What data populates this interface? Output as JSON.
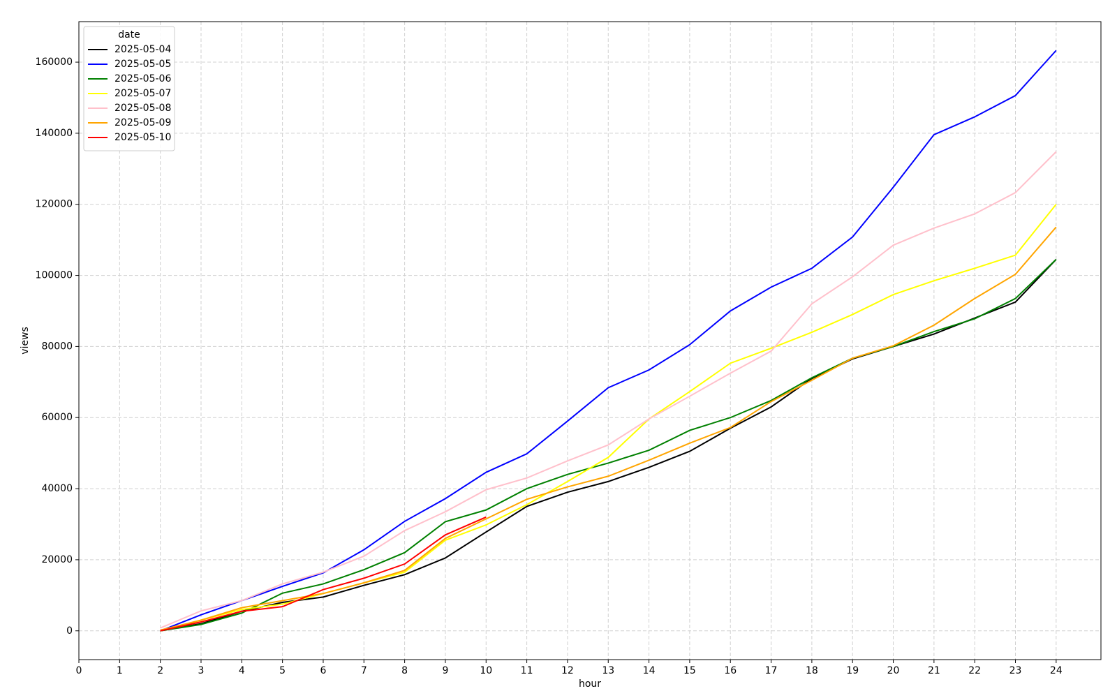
{
  "chart_data": {
    "type": "line",
    "xlabel": "hour",
    "ylabel": "views",
    "legend_title": "date",
    "legend_loc": "upper left",
    "grid": true,
    "x": [
      2,
      3,
      4,
      5,
      6,
      7,
      8,
      9,
      10,
      11,
      12,
      13,
      14,
      15,
      16,
      17,
      18,
      19,
      20,
      21,
      22,
      23,
      24
    ],
    "xlim": [
      0,
      25.1
    ],
    "xticks": [
      0,
      1,
      2,
      3,
      4,
      5,
      6,
      7,
      8,
      9,
      10,
      11,
      12,
      13,
      14,
      15,
      16,
      17,
      18,
      19,
      20,
      21,
      22,
      23,
      24
    ],
    "ylim": [
      -8100,
      171400
    ],
    "yticks": [
      0,
      20000,
      40000,
      60000,
      80000,
      100000,
      120000,
      140000,
      160000
    ],
    "series": [
      {
        "name": "2025-05-04",
        "color": "#000000",
        "values": [
          0,
          2000,
          5500,
          8000,
          9500,
          12800,
          15800,
          20500,
          27800,
          35000,
          39000,
          42000,
          46000,
          50500,
          57000,
          63000,
          71000,
          76500,
          80000,
          83500,
          88000,
          92500,
          104500
        ]
      },
      {
        "name": "2025-05-05",
        "color": "#0000ff",
        "values": [
          0,
          4500,
          8500,
          12500,
          16300,
          22800,
          30800,
          37200,
          44600,
          49800,
          59000,
          68400,
          73400,
          80500,
          90000,
          96700,
          102000,
          110800,
          124800,
          139600,
          144600,
          150600,
          163300
        ]
      },
      {
        "name": "2025-05-06",
        "color": "#008000",
        "values": [
          0,
          1800,
          5000,
          10600,
          13200,
          17200,
          22000,
          30700,
          34000,
          40000,
          44000,
          47200,
          50800,
          56400,
          60000,
          64800,
          71200,
          76700,
          80000,
          84200,
          87800,
          93500,
          104500
        ]
      },
      {
        "name": "2025-05-07",
        "color": "#ffff00",
        "values": [
          0,
          3000,
          6000,
          7500,
          10500,
          13500,
          16500,
          25500,
          29800,
          35500,
          42000,
          48800,
          59600,
          67300,
          75300,
          79500,
          84000,
          89000,
          94600,
          98500,
          102000,
          105700,
          120000
        ]
      },
      {
        "name": "2025-05-08",
        "color": "#ffc0cb",
        "values": [
          800,
          5600,
          8500,
          13200,
          16500,
          21000,
          28200,
          33500,
          39700,
          43000,
          47800,
          52300,
          59600,
          66000,
          72500,
          78700,
          92000,
          99600,
          108500,
          113300,
          117300,
          123300,
          134800
        ]
      },
      {
        "name": "2025-05-09",
        "color": "#ffa500",
        "values": [
          200,
          3000,
          6500,
          8500,
          10500,
          13500,
          17000,
          26000,
          31500,
          37000,
          40500,
          43500,
          48000,
          52800,
          57200,
          64500,
          70500,
          76700,
          80200,
          86000,
          93500,
          100300,
          113600
        ]
      },
      {
        "name": "2025-05-10",
        "color": "#ff0000",
        "values": [
          0,
          2500,
          5500,
          6800,
          11600,
          14800,
          18800,
          27000,
          32000,
          null,
          null,
          null,
          null,
          null,
          null,
          null,
          null,
          null,
          null,
          null,
          null,
          null,
          null
        ]
      }
    ]
  }
}
